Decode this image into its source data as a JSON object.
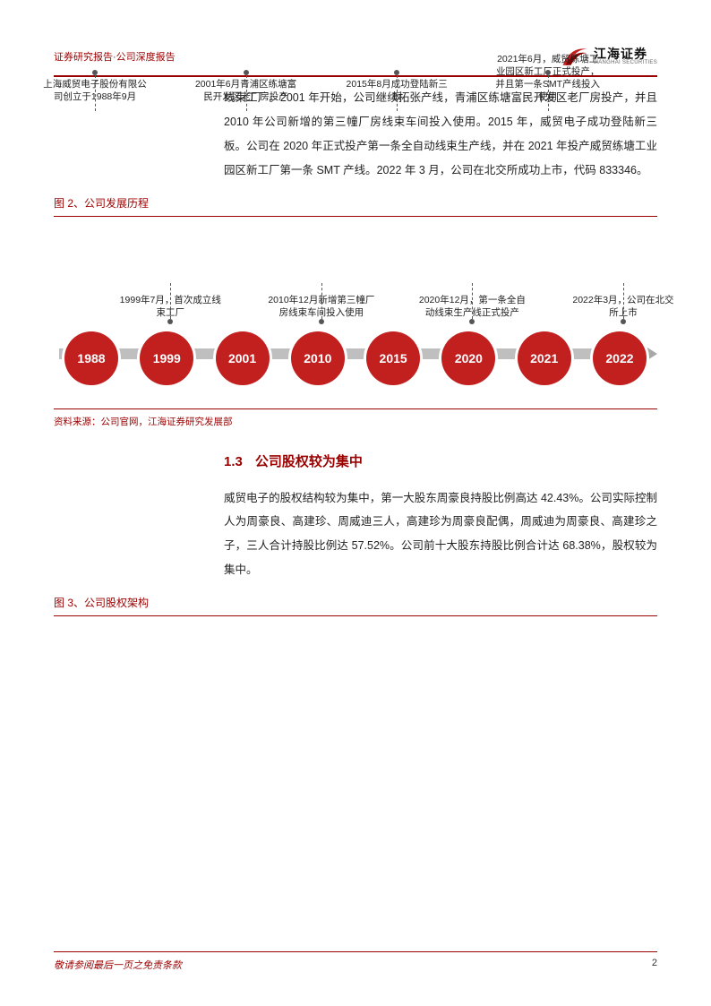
{
  "header": {
    "left": "证券研究报告·公司深度报告",
    "logo_cn": "江海证券",
    "logo_en": "JIANGHAI SECURITIES"
  },
  "colors": {
    "brand": "#9a0000",
    "node": "#c21f1f",
    "arrow_shaft": "#bfbfbf",
    "arrow_head": "#a8a8a8"
  },
  "intro_para": "线束工厂。2001 年开始，公司继续拓张产线，青浦区练塘富民开发区老厂房投产，并且 2010 年公司新增的第三幢厂房线束车间投入使用。2015 年，威贸电子成功登陆新三板。公司在 2020 年正式投产第一条全自动线束生产线，并在 2021 年投产威贸练塘工业园区新工厂第一条 SMT 产线。2022 年 3 月，公司在北交所成功上市，代码 833346。",
  "fig2_caption": "图 2、公司发展历程",
  "timeline": {
    "years": [
      "1988",
      "1999",
      "2001",
      "2010",
      "2015",
      "2020",
      "2021",
      "2022"
    ],
    "annos_top": [
      {
        "idx": 0,
        "text": "上海威贸电子股份有限公司创立于1988年9月"
      },
      {
        "idx": 2,
        "text": "2001年6月青浦区练塘富民开发区老厂房投产"
      },
      {
        "idx": 4,
        "text": "2015年8月成功登陆新三板"
      },
      {
        "idx": 6,
        "text": "2021年6月，威贸练塘工业园区新工厂正式投产，并且第一条SMT产线投入使用"
      }
    ],
    "annos_bottom": [
      {
        "idx": 1,
        "text": "1999年7月，首次成立线束工厂"
      },
      {
        "idx": 3,
        "text": "2010年12月新增第三幢厂房线束车间投入使用"
      },
      {
        "idx": 5,
        "text": "2020年12月，第一条全自动线束生产线正式投产"
      },
      {
        "idx": 7,
        "text": "2022年3月，公司在北交所上市"
      }
    ]
  },
  "fig2_source": "资料来源：公司官网，江海证券研究发展部",
  "section_1_3": {
    "num": "1.3",
    "title": "公司股权较为集中"
  },
  "para_1_3": "威贸电子的股权结构较为集中，第一大股东周豪良持股比例高达 42.43%。公司实际控制人为周豪良、高建珍、周威迪三人，高建珍为周豪良配偶，周威迪为周豪良、高建珍之子，三人合计持股比例达 57.52%。公司前十大股东持股比例合计达 68.38%，股权较为集中。",
  "fig3_caption": "图 3、公司股权架构",
  "footer": {
    "left": "敬请参阅最后一页之免责条款",
    "page": "2"
  }
}
